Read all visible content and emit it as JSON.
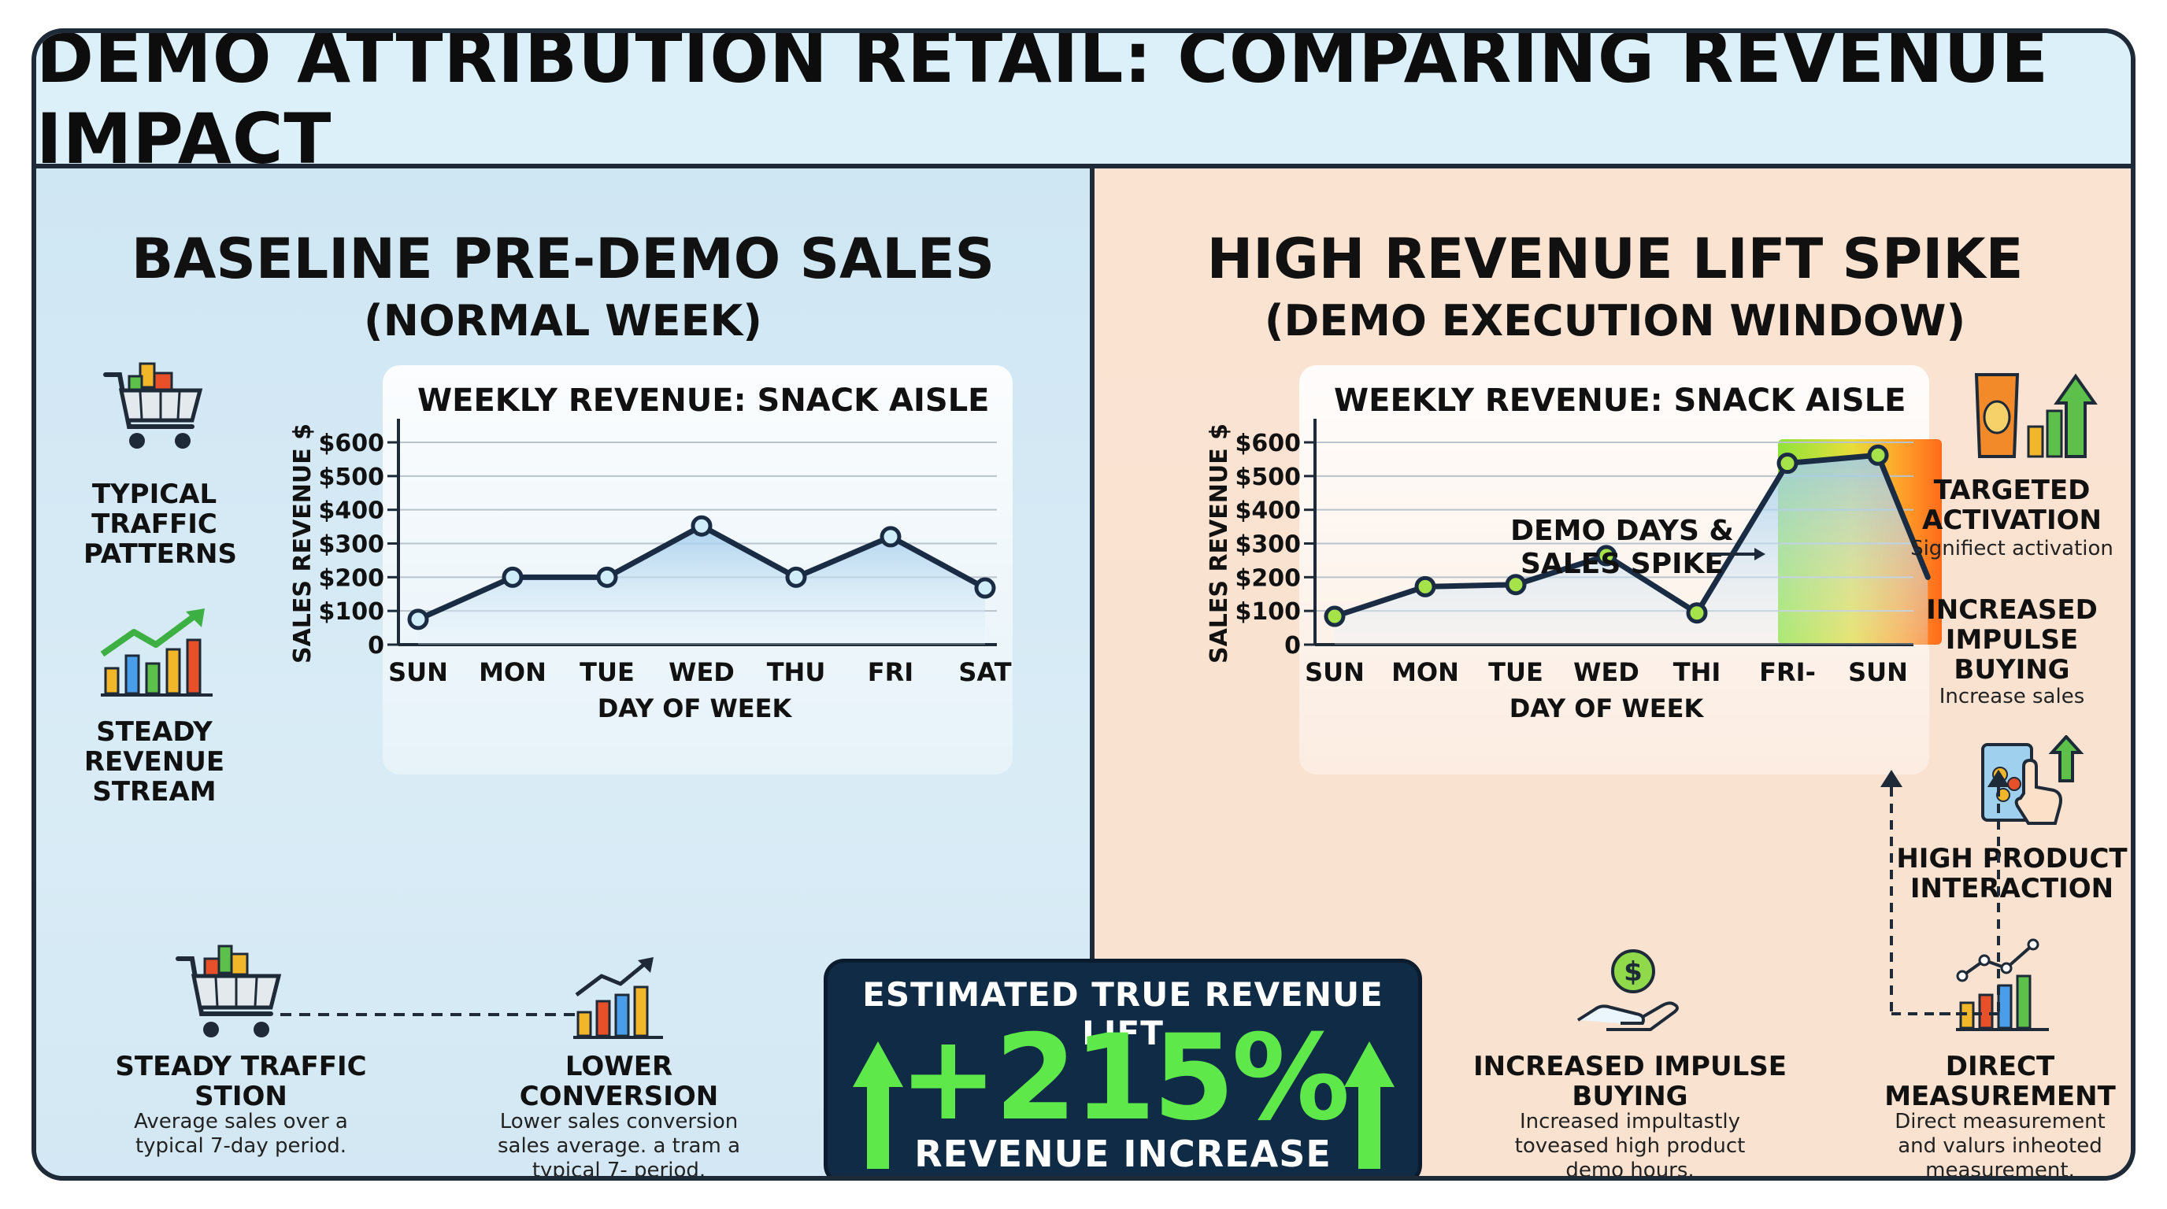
{
  "title": "DEMO ATTRIBUTION RETAIL: COMPARING REVENUE IMPACT",
  "left_panel": {
    "heading": "BASELINE PRE-DEMO SALES",
    "subheading": "(NORMAL WEEK)",
    "side_labels": [
      {
        "text": "TYPICAL TRAFFIC PATTERNS",
        "icon": "shopping-cart-icon"
      },
      {
        "text": "STEADY REVENUE STREAM",
        "icon": "growth-chart-icon"
      }
    ],
    "bottom": [
      {
        "title": "STEADY TRAFFIC STION",
        "body": "Average sales over a typical 7-day period.",
        "icon": "shopping-cart-icon"
      },
      {
        "title": "LOWER CONVERSION",
        "body": "Lower sales conversion sales average. a tram a typical 7- period.",
        "icon": "bar-chart-icon"
      }
    ]
  },
  "right_panel": {
    "heading": "HIGH REVENUE LIFT SPIKE",
    "subheading": "(DEMO EXECUTION WINDOW)",
    "annotation": "DEMO DAYS & SALES SPIKE",
    "side_labels": [
      {
        "title": "TARGETED ACTIVATION",
        "body": "Signifiect activation",
        "icon": "snack-bag-icon"
      },
      {
        "title": "INCREASED IMPULSE BUYING",
        "body": "Increase sales",
        "icon": ""
      },
      {
        "title": "HIGH PRODUCT INTERACTION",
        "body": "",
        "icon": "hand-tap-icon"
      }
    ],
    "bottom": [
      {
        "title": "INCREASED IMPULSE BUYING",
        "body": "Increased impultastly toveased high product demo hours.",
        "icon": "hand-coin-icon"
      },
      {
        "title": "DIRECT MEASUREMENT",
        "body": "Direct measurement and valurs inheoted measurement.",
        "icon": "line-bar-chart-icon"
      }
    ]
  },
  "lift_box": {
    "title": "ESTIMATED TRUE REVENUE LIFT",
    "value": "+215%",
    "subtitle": "REVENUE INCREASE"
  },
  "colors": {
    "line": "#1a2c44",
    "marker_left": "#cfeefa",
    "marker_right": "#a6e34a",
    "lift_green": "#5ee84a",
    "panel_left": "#d3e8f4",
    "panel_right": "#fbe3d2",
    "spike_start": "#8fe33a",
    "spike_end": "#ff6a1a"
  },
  "chart_data": [
    {
      "type": "line",
      "title": "WEEKLY REVENUE: SNACK AISLE",
      "xlabel": "DAY OF WEEK",
      "ylabel": "SALES REVENUE $",
      "categories": [
        "SUN",
        "MON",
        "TUE",
        "WED",
        "THU",
        "FRI",
        "SAT"
      ],
      "values": [
        75,
        200,
        200,
        352,
        200,
        320,
        168
      ],
      "ylim": [
        0,
        600
      ],
      "yticks": [
        "0",
        "$100",
        "$200",
        "$300",
        "$400",
        "$500",
        "$600"
      ],
      "grid": true
    },
    {
      "type": "line",
      "title": "WEEKLY REVENUE: SNACK AISLE",
      "xlabel": "DAY OF WEEK",
      "ylabel": "SALES REVENUE $",
      "categories": [
        "SUN",
        "MON",
        "TUE",
        "WED",
        "THI",
        "FRI-",
        "SUN"
      ],
      "values": [
        84,
        172,
        178,
        264,
        94,
        538,
        562
      ],
      "trailing_value": 200,
      "highlight": [
        "THI",
        "SUN"
      ],
      "ylim": [
        0,
        600
      ],
      "yticks": [
        "0",
        "$100",
        "$200",
        "$300",
        "$400",
        "$500",
        "$600"
      ],
      "grid": true
    }
  ]
}
